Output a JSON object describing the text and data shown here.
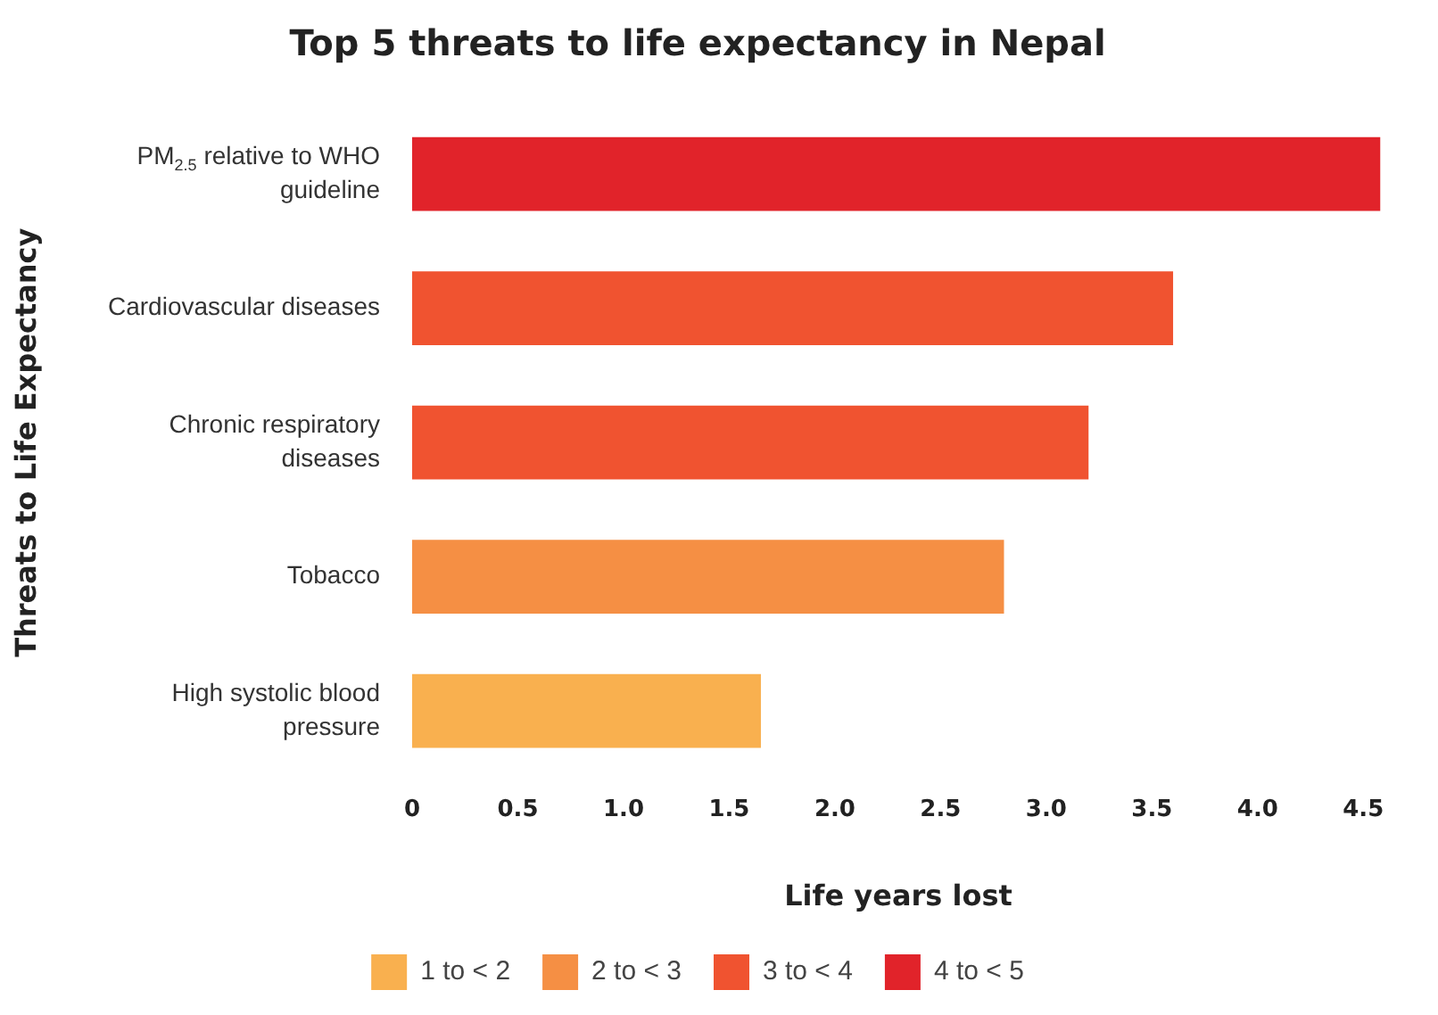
{
  "chart_data": {
    "type": "bar",
    "orientation": "horizontal",
    "stacked": true,
    "title": "Top 5 threats to life expectancy in Nepal",
    "xlabel": "Life years lost",
    "ylabel": "Threats to Life Expectancy",
    "categories": [
      "PM$_{2.5}$ relative to WHO guideline",
      "Cardiovascular diseases",
      "Chronic respiratory diseases",
      "Tobacco",
      "High systolic blood pressure"
    ],
    "series": [
      {
        "name": "1 to < 2",
        "color": "#f9b04f",
        "values": [
          null,
          null,
          null,
          null,
          1.65
        ]
      },
      {
        "name": "2 to < 3",
        "color": "#f58f44",
        "values": [
          null,
          null,
          null,
          2.8,
          null
        ]
      },
      {
        "name": "3 to < 4",
        "color": "#f05330",
        "values": [
          null,
          3.6,
          3.2,
          null,
          null
        ]
      },
      {
        "name": "4 to < 5",
        "color": "#e1232a",
        "values": [
          4.58,
          null,
          null,
          null,
          null
        ]
      }
    ],
    "xlim": [
      0,
      4.6
    ],
    "xticks": [
      0,
      0.5,
      {
        "value": 1,
        "label": "1.0"
      },
      1.5,
      {
        "value": 2,
        "label": "2.0"
      },
      2.5,
      {
        "value": 3,
        "label": "3.0"
      },
      3.5,
      {
        "value": 4,
        "label": "4.0"
      },
      4.5
    ],
    "grid": false,
    "legend": "bottom"
  }
}
